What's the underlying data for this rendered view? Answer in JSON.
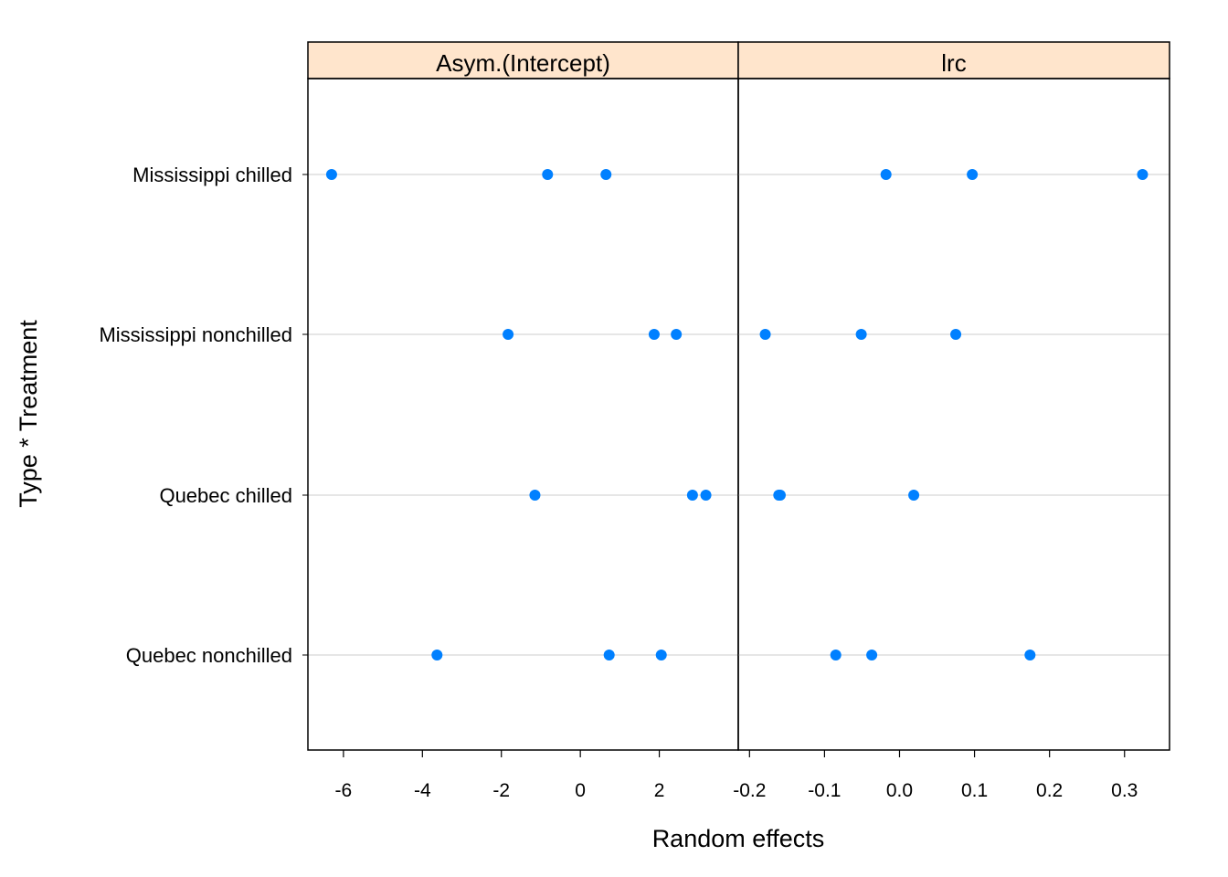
{
  "chart_data": {
    "type": "scatter",
    "xlabel": "Random effects",
    "ylabel": "Type * Treatment",
    "categories": [
      "Mississippi chilled",
      "Mississippi nonchilled",
      "Quebec chilled",
      "Quebec nonchilled"
    ],
    "colors": {
      "point": "#0080ff",
      "strip_fill": "#ffe5cc",
      "gridline": "#e6e6e6",
      "frame": "#000000"
    },
    "panels": [
      {
        "name": "Asym.(Intercept)",
        "xlim": [
          -6.9,
          4.0
        ],
        "ticks": [
          -6,
          -4,
          -2,
          0,
          2
        ],
        "tick_labels": [
          "-6",
          "-4",
          "-2",
          "0",
          "2"
        ],
        "values": {
          "Mississippi chilled": [
            -6.3,
            -0.83,
            0.65
          ],
          "Mississippi nonchilled": [
            -1.83,
            1.87,
            2.43
          ],
          "Quebec chilled": [
            -1.15,
            2.84,
            3.18
          ],
          "Quebec nonchilled": [
            -3.63,
            0.73,
            2.05
          ]
        }
      },
      {
        "name": "lrc",
        "xlim": [
          -0.215,
          0.36
        ],
        "ticks": [
          -0.2,
          -0.1,
          0.0,
          0.1,
          0.2,
          0.3
        ],
        "tick_labels": [
          "-0.2",
          "-0.1",
          "0.0",
          "0.1",
          "0.2",
          "0.3"
        ],
        "values": {
          "Mississippi chilled": [
            -0.018,
            0.097,
            0.324
          ],
          "Mississippi nonchilled": [
            -0.179,
            -0.051,
            0.075
          ],
          "Quebec chilled": [
            -0.161,
            -0.159,
            0.019
          ],
          "Quebec nonchilled": [
            -0.085,
            -0.037,
            0.174
          ]
        }
      }
    ]
  }
}
